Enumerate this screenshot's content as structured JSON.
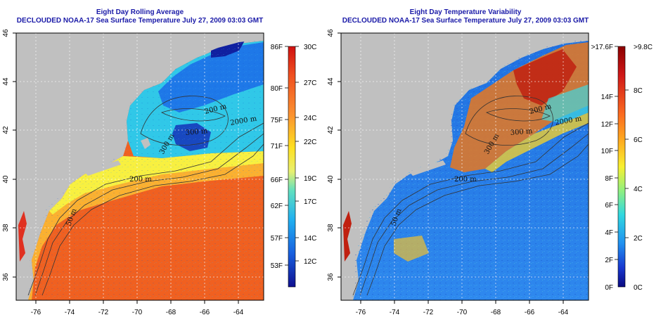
{
  "panels": [
    {
      "title_line1": "Eight Day Rolling Average",
      "title_line2": "DECLOUDED NOAA-17 Sea Surface Temperature July 27, 2009 03:03 GMT",
      "colorbar_left_labels": [
        "86F",
        "80F",
        "75F",
        "71F",
        "66F",
        "62F",
        "57F",
        "53F"
      ],
      "colorbar_right_labels": [
        "30C",
        "27C",
        "24C",
        "22C",
        "19C",
        "17C",
        "14C",
        "12C"
      ],
      "contour_labels": [
        "200 m",
        "2000 m",
        "300 m",
        "300 m",
        "200 m",
        "50 m"
      ]
    },
    {
      "title_line1": "Eight Day Temperature Variability",
      "title_line2": "DECLOUDED NOAA-17 Sea Surface Temperature July 27, 2009 03:03 GMT",
      "colorbar_left_labels": [
        ">17.6F",
        "14F",
        "12F",
        "10F",
        "8F",
        "6F",
        "4F",
        "2F",
        "0F"
      ],
      "colorbar_right_labels": [
        ">9.8C",
        "8C",
        "6C",
        "4C",
        "2C",
        "0C"
      ],
      "contour_labels": [
        "200 m",
        "2000 m",
        "300 m",
        "300 m",
        "200 m",
        "50 m"
      ]
    }
  ],
  "axes": {
    "lon_ticks": [
      "-76",
      "-74",
      "-72",
      "-70",
      "-68",
      "-66",
      "-64"
    ],
    "lat_ticks": [
      "36",
      "38",
      "40",
      "42",
      "44",
      "46"
    ]
  },
  "colors": {
    "title": "#1a1aa8",
    "land": "#c0c0c0",
    "grid": "#ffffff"
  }
}
